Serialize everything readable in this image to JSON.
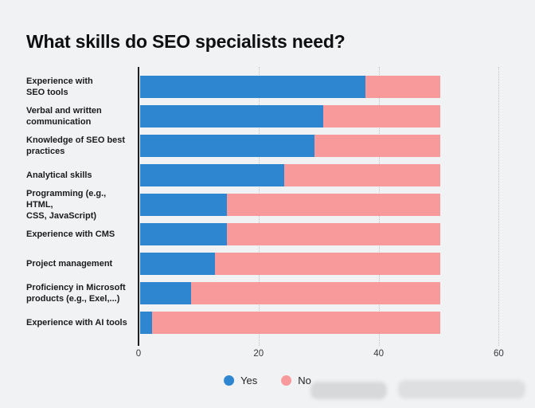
{
  "title": "What skills do SEO specialists need?",
  "chart_data": {
    "type": "bar",
    "orientation": "horizontal",
    "stacked": true,
    "title": "What skills do SEO specialists need?",
    "categories": [
      "Experience with\nSEO tools",
      "Verbal and written\ncommunication",
      "Knowledge of SEO best\npractices",
      "Analytical skills",
      "Programming (e.g., HTML,\nCSS, JavaScript)",
      "Experience with CMS",
      "Project management",
      "Proficiency in Microsoft\nproducts (e.g., Exel,...)",
      "Experience with AI tools"
    ],
    "series": [
      {
        "name": "Yes",
        "color": "#2e86d1",
        "values": [
          37.5,
          30.5,
          29,
          24,
          14.5,
          14.5,
          12.5,
          8.5,
          2
        ]
      },
      {
        "name": "No",
        "color": "#f89a9b",
        "values": [
          12.5,
          19.5,
          21,
          26,
          35.5,
          35.5,
          37.5,
          41.5,
          48
        ]
      }
    ],
    "bar_total": 50,
    "xlabel": "",
    "ylabel": "",
    "xlim": [
      0,
      60
    ],
    "x_ticks": [
      0,
      20,
      40,
      60
    ],
    "grid": "dotted vertical gridlines at 20, 40, 60",
    "legend_position": "bottom-center"
  },
  "legend": {
    "items": [
      {
        "label": "Yes",
        "color": "#2e86d1"
      },
      {
        "label": "No",
        "color": "#f89a9b"
      }
    ]
  },
  "colors": {
    "background": "#f1f2f4",
    "axis": "#1f2023",
    "gridline": "#c2c4c7",
    "title_text": "#0e0f11",
    "label_text": "#1a1b1d",
    "tick_text": "#36383b"
  }
}
